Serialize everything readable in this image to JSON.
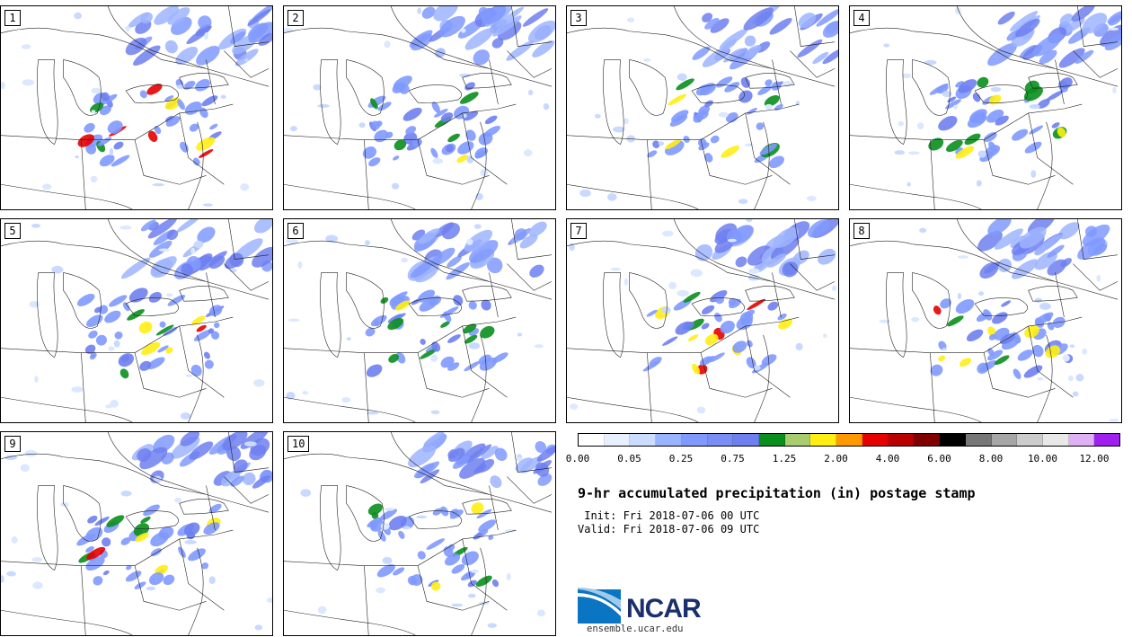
{
  "panels": [
    {
      "label": "1"
    },
    {
      "label": "2"
    },
    {
      "label": "3"
    },
    {
      "label": "4"
    },
    {
      "label": "5"
    },
    {
      "label": "6"
    },
    {
      "label": "7"
    },
    {
      "label": "8"
    },
    {
      "label": "9"
    },
    {
      "label": "10"
    }
  ],
  "colorbar": {
    "colors": [
      "#ffffff",
      "#e6f0ff",
      "#ccdcff",
      "#99b3ff",
      "#8099ff",
      "#7a8cf5",
      "#6e7ff0",
      "#0a8f1e",
      "#a8cc6e",
      "#ffee14",
      "#ff9900",
      "#e60000",
      "#b80000",
      "#800000",
      "#000000",
      "#777777",
      "#a6a6a6",
      "#cccccc",
      "#e8e8e8",
      "#e0b0f5",
      "#a020f0"
    ],
    "tick_labels": [
      "0.00",
      "0.05",
      "0.25",
      "0.75",
      "1.25",
      "2.00",
      "4.00",
      "6.00",
      "8.00",
      "10.00",
      "12.00"
    ]
  },
  "title": "9-hr accumulated precipitation (in) postage stamp",
  "init": " Init: Fri 2018-07-06 00 UTC",
  "valid": "Valid: Fri 2018-07-06 09 UTC",
  "logo_text": "NCAR",
  "website": "ensemble.ucar.edu"
}
